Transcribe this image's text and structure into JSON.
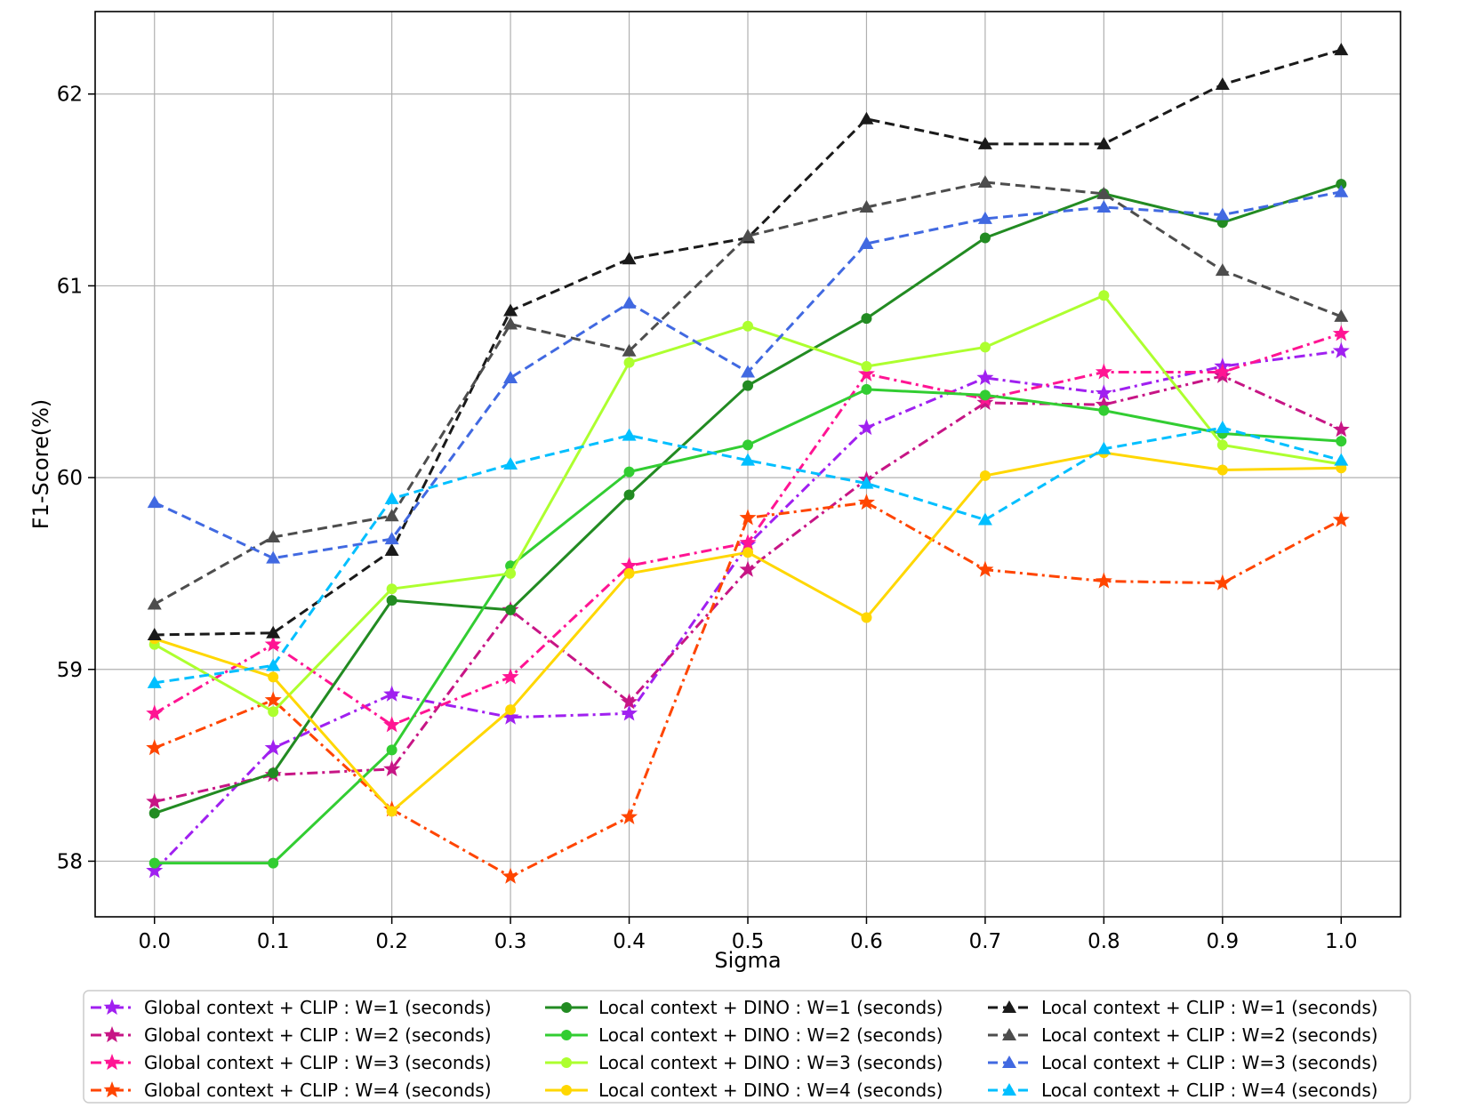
{
  "chart_data": {
    "type": "line",
    "xlabel": "Sigma",
    "ylabel": "F1-Score(%)",
    "x": [
      0.0,
      0.1,
      0.2,
      0.3,
      0.4,
      0.5,
      0.6,
      0.7,
      0.8,
      0.9,
      1.0
    ],
    "xtick_labels": [
      "0.0",
      "0.1",
      "0.2",
      "0.3",
      "0.4",
      "0.5",
      "0.6",
      "0.7",
      "0.8",
      "0.9",
      "1.0"
    ],
    "yticks": [
      58,
      59,
      60,
      61,
      62
    ],
    "ytick_labels": [
      "58",
      "59",
      "60",
      "61",
      "62"
    ],
    "xlim": [
      -0.05,
      1.05
    ],
    "ylim": [
      57.71,
      62.43
    ],
    "grid": true,
    "legend_position": "bottom",
    "series": [
      {
        "name": "Global context + CLIP : W=1 (seconds)",
        "color": "#a020f0",
        "marker": "star",
        "dash": "dashdot",
        "values": [
          57.95,
          58.59,
          58.87,
          58.75,
          58.77,
          59.65,
          60.26,
          60.52,
          60.44,
          60.58,
          60.66
        ]
      },
      {
        "name": "Global context + CLIP : W=2 (seconds)",
        "color": "#c71585",
        "marker": "star",
        "dash": "dashdot",
        "values": [
          58.31,
          58.45,
          58.48,
          59.31,
          58.83,
          59.52,
          59.99,
          60.39,
          60.38,
          60.53,
          60.25
        ]
      },
      {
        "name": "Global context + CLIP : W=3 (seconds)",
        "color": "#ff1493",
        "marker": "star",
        "dash": "dashdot",
        "values": [
          58.77,
          59.13,
          58.71,
          58.96,
          59.54,
          59.66,
          60.54,
          60.41,
          60.55,
          60.55,
          60.75
        ]
      },
      {
        "name": "Global context + CLIP : W=4 (seconds)",
        "color": "#ff4500",
        "marker": "star",
        "dash": "dashdot",
        "values": [
          58.59,
          58.84,
          58.27,
          57.92,
          58.23,
          59.79,
          59.87,
          59.52,
          59.46,
          59.45,
          59.78
        ]
      },
      {
        "name": "Local context + DINO : W=1 (seconds)",
        "color": "#228b22",
        "marker": "circle",
        "dash": "solid",
        "values": [
          58.25,
          58.46,
          59.36,
          59.31,
          59.91,
          60.48,
          60.83,
          61.25,
          61.48,
          61.33,
          61.53
        ]
      },
      {
        "name": "Local context + DINO : W=2 (seconds)",
        "color": "#32cd32",
        "marker": "circle",
        "dash": "solid",
        "values": [
          57.99,
          57.99,
          58.58,
          59.54,
          60.03,
          60.17,
          60.46,
          60.43,
          60.35,
          60.23,
          60.19
        ]
      },
      {
        "name": "Local context + DINO : W=3 (seconds)",
        "color": "#adff2f",
        "marker": "circle",
        "dash": "solid",
        "values": [
          59.13,
          58.78,
          59.42,
          59.5,
          60.6,
          60.79,
          60.58,
          60.68,
          60.95,
          60.17,
          60.07
        ]
      },
      {
        "name": "Local context + DINO : W=4 (seconds)",
        "color": "#ffd700",
        "marker": "circle",
        "dash": "solid",
        "values": [
          59.16,
          58.96,
          58.26,
          58.79,
          59.5,
          59.61,
          59.27,
          60.01,
          60.13,
          60.04,
          60.05
        ]
      },
      {
        "name": "Local context + CLIP : W=1 (seconds)",
        "color": "#1a1a1a",
        "marker": "triangle",
        "dash": "dashed",
        "values": [
          59.18,
          59.19,
          59.62,
          60.87,
          61.14,
          61.25,
          61.87,
          61.74,
          61.74,
          62.05,
          62.23
        ]
      },
      {
        "name": "Local context + CLIP : W=2 (seconds)",
        "color": "#4d4d4d",
        "marker": "triangle",
        "dash": "dashed",
        "values": [
          59.34,
          59.69,
          59.8,
          60.8,
          60.66,
          61.26,
          61.41,
          61.54,
          61.48,
          61.08,
          60.84
        ]
      },
      {
        "name": "Local context + CLIP : W=3 (seconds)",
        "color": "#4169e1",
        "marker": "triangle",
        "dash": "dashed",
        "values": [
          59.87,
          59.58,
          59.68,
          60.52,
          60.91,
          60.55,
          61.22,
          61.35,
          61.41,
          61.37,
          61.49
        ]
      },
      {
        "name": "Local context + CLIP : W=4 (seconds)",
        "color": "#00bfff",
        "marker": "triangle",
        "dash": "dashed",
        "values": [
          58.93,
          59.02,
          59.89,
          60.07,
          60.22,
          60.09,
          59.97,
          59.78,
          60.15,
          60.26,
          60.09
        ]
      }
    ]
  }
}
